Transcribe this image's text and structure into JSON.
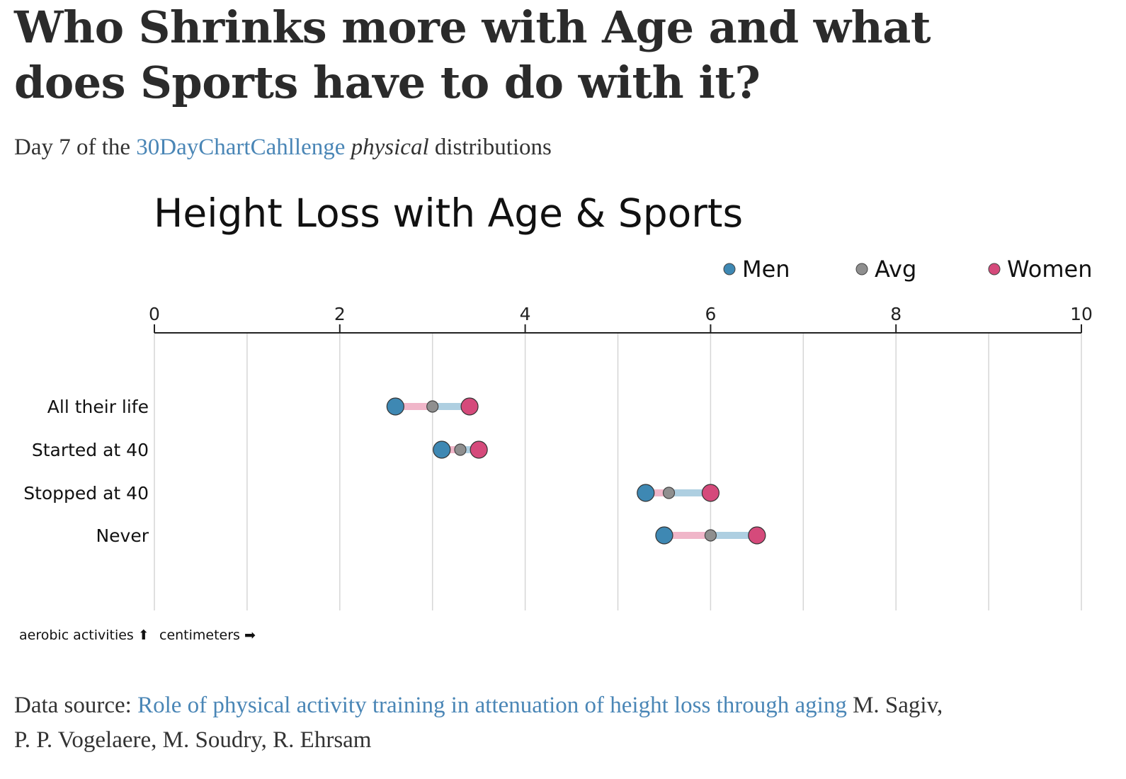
{
  "headline": "Who Shrinks more with Age and what does Sports have to do with it?",
  "subtitle": {
    "prefix": "Day 7 of the",
    "link": "30DayChartCahllenge",
    "italic": "physical",
    "suffix": "distributions"
  },
  "source": {
    "prefix": "Data source:",
    "link": "Role of physical activity training in attenuation of height loss through aging",
    "authors": "M. Sagiv, P. P. Vogelaere, M. Soudry, R. Ehrsam"
  },
  "chart_data": {
    "type": "dot-range",
    "title": "Height Loss with Age & Sports",
    "x_axis_position": "top",
    "xlim": [
      0,
      10
    ],
    "x_ticks": [
      0,
      2,
      4,
      6,
      8,
      10
    ],
    "grid": true,
    "legend_placement": "top-right",
    "x_axis_note": "centimeters ➡",
    "y_axis_note": "aerobic activities ⬆",
    "categories": [
      "All their life",
      "Started at 40",
      "Stopped at 40",
      "Never"
    ],
    "series": [
      {
        "name": "Men",
        "color": "#3e88b3",
        "values": [
          2.6,
          3.1,
          5.3,
          5.5
        ]
      },
      {
        "name": "Avg",
        "color": "#8f8f8f",
        "values": [
          3.0,
          3.3,
          5.55,
          6.0
        ]
      },
      {
        "name": "Women",
        "color": "#d54a7b",
        "values": [
          3.4,
          3.5,
          6.0,
          6.5
        ]
      }
    ],
    "segment_colors": {
      "men_side": "#f0b6c9",
      "women_side": "#aecfe1"
    }
  }
}
